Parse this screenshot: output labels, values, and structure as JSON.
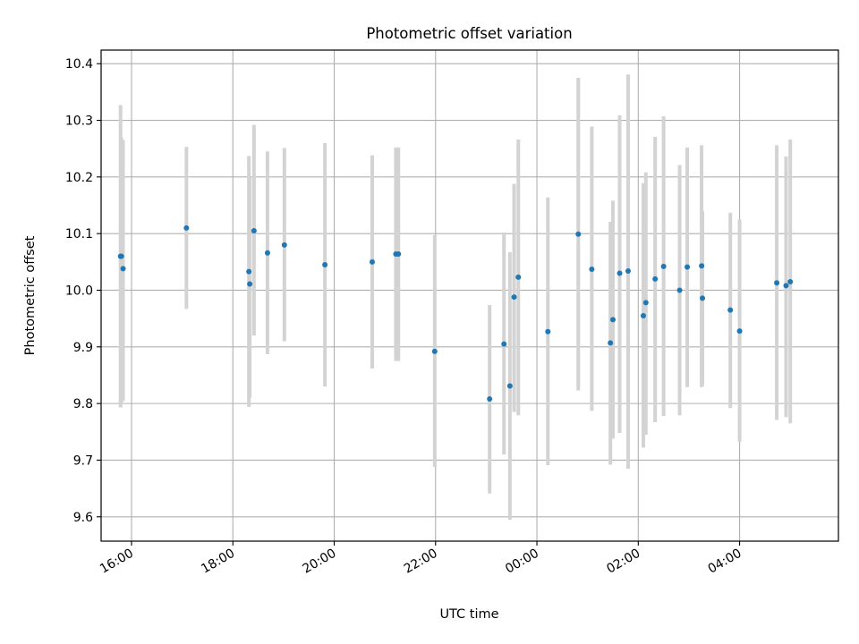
{
  "chart_data": {
    "type": "scatter",
    "title": "Photometric offset variation",
    "xlabel": "UTC time",
    "ylabel": "Photometric offset",
    "x_ticks": [
      "16:00",
      "18:00",
      "20:00",
      "22:00",
      "00:00",
      "02:00",
      "04:00"
    ],
    "y_ticks": [
      "9.6",
      "9.7",
      "9.8",
      "9.9",
      "10.0",
      "10.1",
      "10.2",
      "10.3",
      "10.4"
    ],
    "xlim_hours": [
      15.4,
      29.95
    ],
    "ylim": [
      9.557,
      10.424
    ],
    "grid": true,
    "legend": "none",
    "colors": {
      "points": "#1f77b4",
      "error_bars": "#d3d3d3",
      "grid": "#b0b0b0"
    },
    "points": [
      {
        "x": "15:47",
        "y": 10.06,
        "lo": 9.793,
        "hi": 10.327
      },
      {
        "x": "15:48",
        "y": 10.06,
        "lo": 9.8,
        "hi": 10.27
      },
      {
        "x": "15:50",
        "y": 10.038,
        "lo": 9.805,
        "hi": 10.265
      },
      {
        "x": "17:05",
        "y": 10.11,
        "lo": 9.967,
        "hi": 10.253
      },
      {
        "x": "18:19",
        "y": 10.033,
        "lo": 9.794,
        "hi": 10.237
      },
      {
        "x": "18:20",
        "y": 10.011,
        "lo": 9.81,
        "hi": 10.2
      },
      {
        "x": "18:25",
        "y": 10.105,
        "lo": 9.92,
        "hi": 10.292
      },
      {
        "x": "18:41",
        "y": 10.066,
        "lo": 9.887,
        "hi": 10.245
      },
      {
        "x": "19:01",
        "y": 10.08,
        "lo": 9.91,
        "hi": 10.251
      },
      {
        "x": "19:49",
        "y": 10.045,
        "lo": 9.83,
        "hi": 10.26
      },
      {
        "x": "20:45",
        "y": 10.05,
        "lo": 9.862,
        "hi": 10.238
      },
      {
        "x": "21:13",
        "y": 10.064,
        "lo": 9.875,
        "hi": 10.252
      },
      {
        "x": "21:16",
        "y": 10.064,
        "lo": 9.875,
        "hi": 10.252
      },
      {
        "x": "21:59",
        "y": 9.892,
        "lo": 9.688,
        "hi": 10.097
      },
      {
        "x": "23:04",
        "y": 9.808,
        "lo": 9.641,
        "hi": 9.974
      },
      {
        "x": "23:21",
        "y": 9.905,
        "lo": 9.71,
        "hi": 10.102
      },
      {
        "x": "23:28",
        "y": 9.831,
        "lo": 9.595,
        "hi": 10.067
      },
      {
        "x": "23:33",
        "y": 9.988,
        "lo": 9.785,
        "hi": 10.188
      },
      {
        "x": "23:38",
        "y": 10.023,
        "lo": 9.779,
        "hi": 10.266
      },
      {
        "x": "00:13",
        "y": 9.927,
        "lo": 9.691,
        "hi": 10.164
      },
      {
        "x": "00:49",
        "y": 10.099,
        "lo": 9.823,
        "hi": 10.375
      },
      {
        "x": "01:05",
        "y": 10.037,
        "lo": 9.787,
        "hi": 10.289
      },
      {
        "x": "01:27",
        "y": 9.907,
        "lo": 9.692,
        "hi": 10.121
      },
      {
        "x": "01:30",
        "y": 9.948,
        "lo": 9.738,
        "hi": 10.158
      },
      {
        "x": "01:38",
        "y": 10.03,
        "lo": 9.748,
        "hi": 10.309
      },
      {
        "x": "01:48",
        "y": 10.034,
        "lo": 9.685,
        "hi": 10.381
      },
      {
        "x": "02:06",
        "y": 9.955,
        "lo": 9.722,
        "hi": 10.189
      },
      {
        "x": "02:09",
        "y": 9.978,
        "lo": 9.745,
        "hi": 10.208
      },
      {
        "x": "02:20",
        "y": 10.02,
        "lo": 9.767,
        "hi": 10.271
      },
      {
        "x": "02:30",
        "y": 10.042,
        "lo": 9.778,
        "hi": 10.307
      },
      {
        "x": "02:49",
        "y": 10.0,
        "lo": 9.779,
        "hi": 10.221
      },
      {
        "x": "02:58",
        "y": 10.041,
        "lo": 9.829,
        "hi": 10.252
      },
      {
        "x": "03:15",
        "y": 10.043,
        "lo": 9.829,
        "hi": 10.256
      },
      {
        "x": "03:16",
        "y": 9.986,
        "lo": 9.831,
        "hi": 10.14
      },
      {
        "x": "03:49",
        "y": 9.965,
        "lo": 9.792,
        "hi": 10.137
      },
      {
        "x": "04:00",
        "y": 9.928,
        "lo": 9.732,
        "hi": 10.125
      },
      {
        "x": "04:44",
        "y": 10.013,
        "lo": 9.771,
        "hi": 10.256
      },
      {
        "x": "04:55",
        "y": 10.008,
        "lo": 9.776,
        "hi": 10.236
      },
      {
        "x": "05:00",
        "y": 10.015,
        "lo": 9.765,
        "hi": 10.266
      }
    ]
  }
}
